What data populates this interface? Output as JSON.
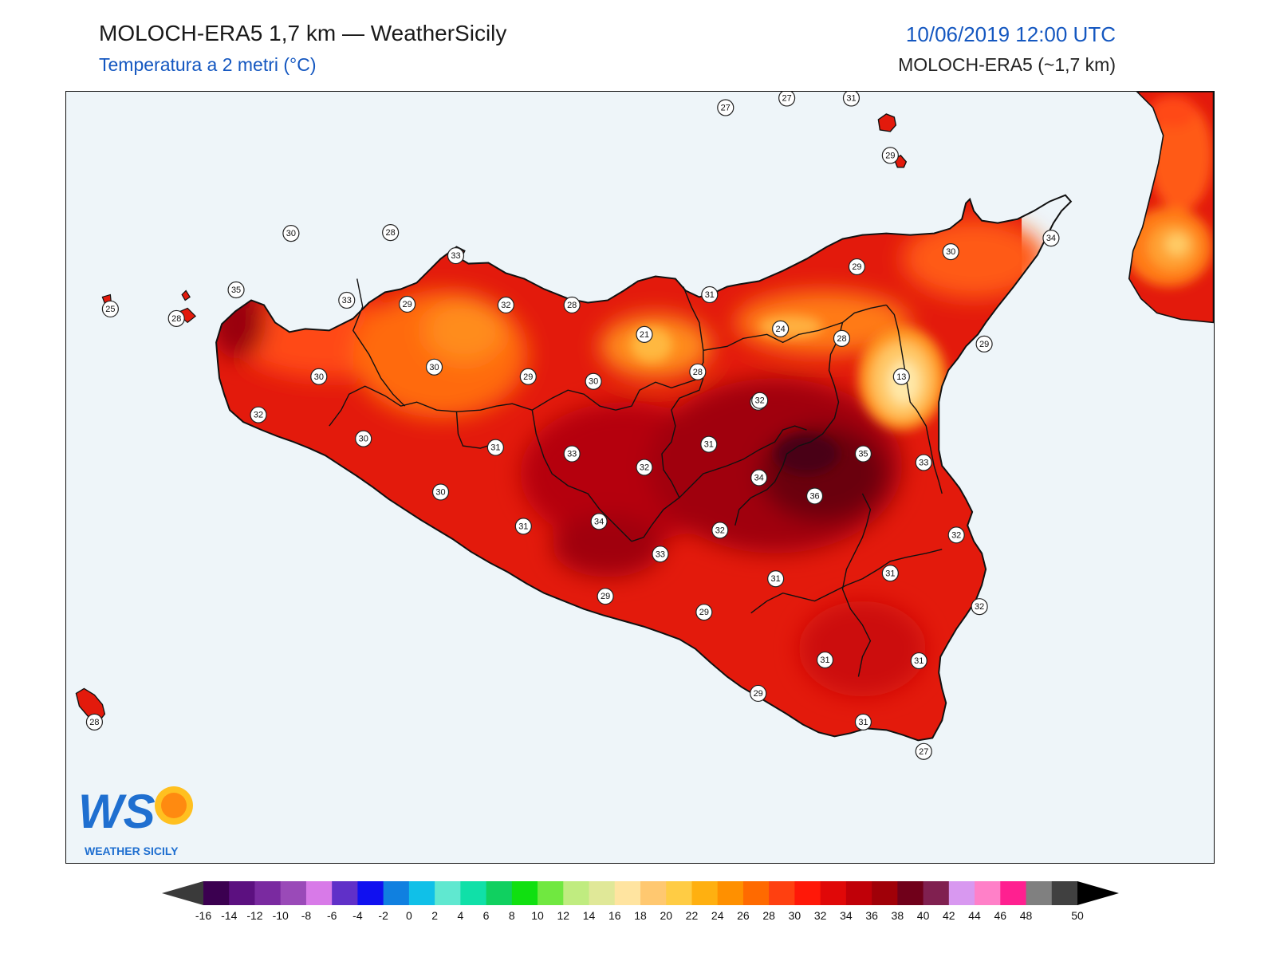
{
  "header": {
    "title": "MOLOCH-ERA5 1,7 km — WeatherSicily",
    "subtitle": "Temperatura a 2 metri (°C)",
    "datetime": "10/06/2019 12:00 UTC",
    "model": "MOLOCH-ERA5 (~1,7 km)"
  },
  "colors": {
    "sea": "#eef5f9",
    "land_base": "#e31a0c",
    "land_warm": "#c40a08",
    "land_hot": "#8a0005",
    "land_hottest": "#5a0010",
    "land_cool": "#ff5a10",
    "land_cooler": "#ff8c1a",
    "land_coolest": "#ffd27a",
    "coast": "#111111",
    "title_blue": "#1457c0"
  },
  "stations": [
    {
      "v": "27"
    },
    {
      "v": "27"
    },
    {
      "v": "31"
    },
    {
      "v": "29"
    },
    {
      "v": "30"
    },
    {
      "v": "28"
    },
    {
      "v": "33"
    },
    {
      "v": "35"
    },
    {
      "v": "25"
    },
    {
      "v": "28"
    },
    {
      "v": "33"
    },
    {
      "v": "29"
    },
    {
      "v": "32"
    },
    {
      "v": "28"
    },
    {
      "v": "31"
    },
    {
      "v": "29"
    },
    {
      "v": "30"
    },
    {
      "v": "34"
    },
    {
      "v": "21"
    },
    {
      "v": "24"
    },
    {
      "v": "28"
    },
    {
      "v": "29"
    },
    {
      "v": "13"
    },
    {
      "v": "30"
    },
    {
      "v": "30"
    },
    {
      "v": "29"
    },
    {
      "v": "30"
    },
    {
      "v": "28"
    },
    {
      "v": "32"
    },
    {
      "v": "34"
    },
    {
      "v": "32"
    },
    {
      "v": "30"
    },
    {
      "v": "31"
    },
    {
      "v": "33"
    },
    {
      "v": "32"
    },
    {
      "v": "31"
    },
    {
      "v": "35"
    },
    {
      "v": "33"
    },
    {
      "v": "30"
    },
    {
      "v": "34"
    },
    {
      "v": "36"
    },
    {
      "v": "31"
    },
    {
      "v": "34"
    },
    {
      "v": "32"
    },
    {
      "v": "32"
    },
    {
      "v": "33"
    },
    {
      "v": "31"
    },
    {
      "v": "31"
    },
    {
      "v": "32"
    },
    {
      "v": "29"
    },
    {
      "v": "29"
    },
    {
      "v": "31"
    },
    {
      "v": "31"
    },
    {
      "v": "29"
    },
    {
      "v": "31"
    },
    {
      "v": "27"
    },
    {
      "v": "28"
    }
  ],
  "logo": {
    "letters": "WS",
    "text": "WEATHER SICILY"
  },
  "colorbar": {
    "ticks": [
      "-16",
      "-14",
      "-12",
      "-10",
      "-8",
      "-6",
      "-4",
      "-2",
      "0",
      "2",
      "4",
      "6",
      "8",
      "10",
      "12",
      "14",
      "16",
      "18",
      "20",
      "22",
      "24",
      "26",
      "28",
      "30",
      "32",
      "34",
      "36",
      "38",
      "40",
      "42",
      "44",
      "46",
      "48",
      "50"
    ],
    "colors": [
      "#3b0050",
      "#5c1080",
      "#7a2aa0",
      "#9a4ab8",
      "#d87ae8",
      "#6030c8",
      "#1010f0",
      "#1080e0",
      "#10c0e8",
      "#60e8d0",
      "#10e0a8",
      "#10d060",
      "#10e010",
      "#70e840",
      "#c0ec80",
      "#e0e898",
      "#ffe4a0",
      "#ffc870",
      "#ffcc44",
      "#ffb010",
      "#ff9000",
      "#ff6a00",
      "#ff4010",
      "#ff1808",
      "#e00808",
      "#c00008",
      "#a00008",
      "#70001a",
      "#802050",
      "#d898f0",
      "#ff80c8",
      "#ff2090",
      "#808080",
      "#404040"
    ]
  }
}
